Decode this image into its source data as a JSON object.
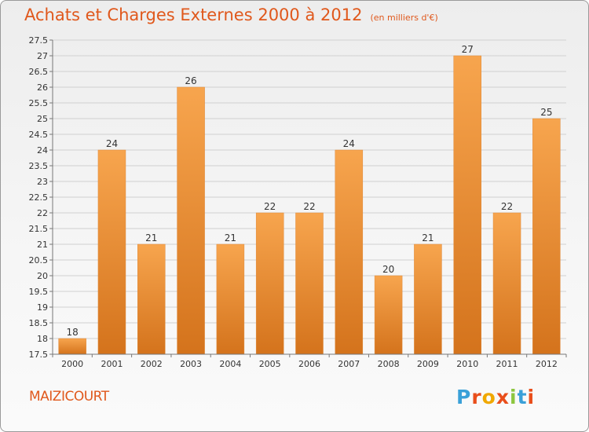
{
  "header": {
    "title": "Achats et Charges Externes 2000 à 2012",
    "subtitle": "(en milliers d'€)"
  },
  "footer": {
    "commune": "MAIZICOURT",
    "logo_text": "Proxiti",
    "logo_colors": [
      "#3aa0d8",
      "#e94e1b",
      "#f0a800",
      "#e94e1b",
      "#8dc63f",
      "#3aa0d8",
      "#e94e1b"
    ]
  },
  "colors": {
    "bar_light": "#f7a54e",
    "bar_dark": "#d4731c",
    "title": "#e0581c",
    "grid": "#d0d0d0"
  },
  "chart_data": {
    "type": "bar",
    "title": "Achats et Charges Externes 2000 à 2012",
    "categories": [
      "2000",
      "2001",
      "2002",
      "2003",
      "2004",
      "2005",
      "2006",
      "2007",
      "2008",
      "2009",
      "2010",
      "2011",
      "2012"
    ],
    "values": [
      18,
      24,
      21,
      26,
      21,
      22,
      22,
      24,
      20,
      21,
      27,
      22,
      25
    ],
    "ylim": [
      17.5,
      27.5
    ],
    "yticks": [
      "17.5",
      "18",
      "18.5",
      "19",
      "19.5",
      "20",
      "20.5",
      "21",
      "21.5",
      "22",
      "22.5",
      "23",
      "23.5",
      "24",
      "24.5",
      "25",
      "25.5",
      "26",
      "26.5",
      "27",
      "27.5"
    ],
    "grid": true,
    "xlabel": "",
    "ylabel": ""
  }
}
